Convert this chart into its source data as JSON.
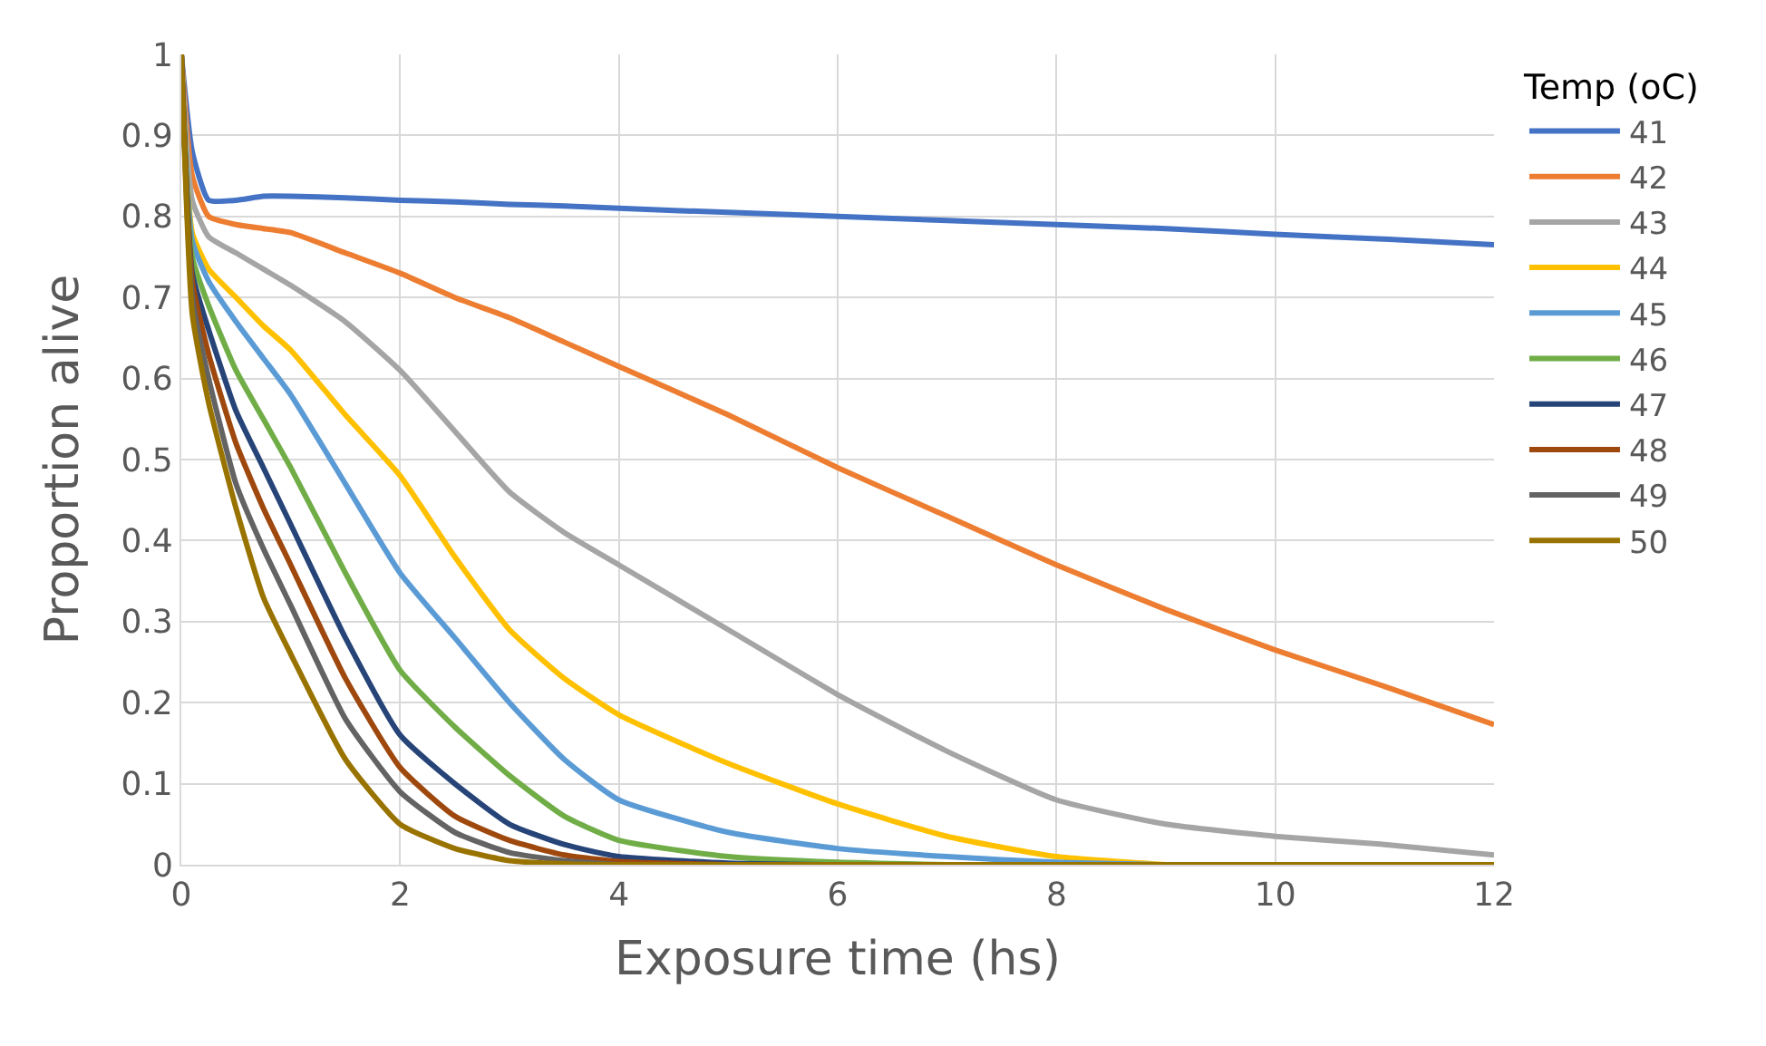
{
  "chart_data": {
    "type": "line",
    "xlabel": "Exposure time (hs)",
    "ylabel": "Proportion alive",
    "legend_title": "Temp (oC)",
    "x": [
      0,
      0.1,
      0.25,
      0.5,
      0.75,
      1,
      1.5,
      2,
      2.5,
      3,
      3.5,
      4,
      5,
      6,
      7,
      8,
      9,
      10,
      11,
      12
    ],
    "series": [
      {
        "name": "41",
        "color": "#4472c4",
        "values": [
          1,
          0.88,
          0.82,
          0.82,
          0.825,
          0.825,
          0.823,
          0.82,
          0.818,
          0.815,
          0.813,
          0.81,
          0.805,
          0.8,
          0.795,
          0.79,
          0.785,
          0.778,
          0.772,
          0.765
        ]
      },
      {
        "name": "42",
        "color": "#ed7d31",
        "values": [
          1,
          0.85,
          0.8,
          0.79,
          0.785,
          0.78,
          0.755,
          0.73,
          0.7,
          0.675,
          0.645,
          0.615,
          0.555,
          0.49,
          0.43,
          0.37,
          0.315,
          0.265,
          0.22,
          0.173
        ]
      },
      {
        "name": "43",
        "color": "#a5a5a5",
        "values": [
          1,
          0.82,
          0.775,
          0.755,
          0.735,
          0.715,
          0.67,
          0.61,
          0.535,
          0.46,
          0.41,
          0.37,
          0.29,
          0.21,
          0.14,
          0.08,
          0.05,
          0.035,
          0.025,
          0.012
        ]
      },
      {
        "name": "44",
        "color": "#ffc000",
        "values": [
          1,
          0.78,
          0.735,
          0.7,
          0.665,
          0.635,
          0.555,
          0.48,
          0.38,
          0.29,
          0.23,
          0.185,
          0.125,
          0.075,
          0.035,
          0.01,
          0,
          null,
          null,
          null
        ]
      },
      {
        "name": "45",
        "color": "#5b9bd5",
        "values": [
          1,
          0.77,
          0.72,
          0.67,
          0.625,
          0.58,
          0.47,
          0.36,
          0.28,
          0.2,
          0.13,
          0.08,
          0.04,
          0.02,
          0.01,
          0.003,
          0,
          null,
          null,
          null
        ]
      },
      {
        "name": "46",
        "color": "#70ad47",
        "values": [
          1,
          0.75,
          0.69,
          0.61,
          0.55,
          0.49,
          0.36,
          0.24,
          0.17,
          0.11,
          0.06,
          0.03,
          0.01,
          0.003,
          0,
          null,
          null,
          null,
          null,
          null
        ]
      },
      {
        "name": "47",
        "color": "#264478",
        "values": [
          1,
          0.73,
          0.66,
          0.56,
          0.49,
          0.42,
          0.28,
          0.16,
          0.1,
          0.05,
          0.025,
          0.01,
          0.002,
          0,
          null,
          null,
          null,
          null,
          null,
          null
        ]
      },
      {
        "name": "48",
        "color": "#9e480e",
        "values": [
          1,
          0.72,
          0.63,
          0.52,
          0.44,
          0.37,
          0.23,
          0.12,
          0.06,
          0.03,
          0.012,
          0.004,
          0,
          null,
          null,
          null,
          null,
          null,
          null,
          null
        ]
      },
      {
        "name": "49",
        "color": "#636363",
        "values": [
          1,
          0.7,
          0.6,
          0.47,
          0.39,
          0.32,
          0.18,
          0.09,
          0.04,
          0.015,
          0.005,
          0,
          null,
          null,
          null,
          null,
          null,
          null,
          null,
          null
        ]
      },
      {
        "name": "50",
        "color": "#997300",
        "values": [
          1,
          0.68,
          0.57,
          0.44,
          0.33,
          0.26,
          0.13,
          0.05,
          0.02,
          0.005,
          0.001,
          0,
          0,
          0,
          0,
          0,
          0,
          0,
          0,
          0
        ]
      }
    ],
    "xlim": [
      0,
      12
    ],
    "xticks": [
      0,
      2,
      4,
      6,
      8,
      10,
      12
    ],
    "ylim": [
      0,
      1
    ],
    "yticks": [
      0,
      0.1,
      0.2,
      0.3,
      0.4,
      0.5,
      0.6,
      0.7,
      0.8,
      0.9,
      1
    ],
    "grid": true,
    "legend": "right",
    "marker": "none",
    "line_style": "solid"
  }
}
